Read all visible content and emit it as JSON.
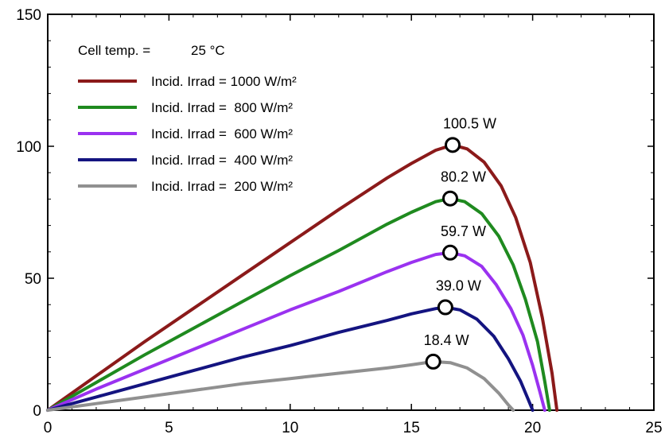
{
  "chart_data": {
    "type": "line",
    "title": "",
    "xlabel": "",
    "ylabel": "",
    "xlim": [
      0,
      25
    ],
    "ylim": [
      0,
      150
    ],
    "x_ticks": [
      0,
      5,
      10,
      15,
      20,
      25
    ],
    "y_ticks": [
      0,
      50,
      100,
      150
    ],
    "grid": false,
    "legend_placement": "top-left",
    "annotation": {
      "label": "Cell temp. =",
      "value": "25 °C"
    },
    "series": [
      {
        "name": "Incid. Irrad = 1000 W/m²",
        "color": "#8b1a1a",
        "x": [
          0,
          2,
          4,
          6,
          8,
          10,
          12,
          14,
          15,
          16.0,
          16.7,
          17.3,
          18.0,
          18.7,
          19.3,
          19.9,
          20.4,
          20.8,
          21.0
        ],
        "y": [
          0,
          13,
          26,
          38.5,
          51,
          63.5,
          76,
          88,
          93.5,
          98.5,
          100.5,
          99,
          94,
          85,
          73,
          56,
          35,
          14,
          0
        ],
        "mpp": {
          "x": 16.7,
          "y": 100.5,
          "label": "100.5 W"
        }
      },
      {
        "name": "Incid. Irrad =  800 W/m²",
        "color": "#1f8a1f",
        "x": [
          0,
          2,
          4,
          6,
          8,
          10,
          12,
          14,
          15,
          16.0,
          16.6,
          17.2,
          17.9,
          18.6,
          19.2,
          19.7,
          20.2,
          20.5,
          20.7
        ],
        "y": [
          0,
          10.5,
          21,
          31,
          41,
          51,
          60.5,
          70.5,
          75,
          79,
          80.2,
          79,
          74.5,
          66,
          55,
          42,
          26,
          11,
          0
        ],
        "mpp": {
          "x": 16.6,
          "y": 80.2,
          "label": "80.2 W"
        }
      },
      {
        "name": "Incid. Irrad =  600 W/m²",
        "color": "#9a32f0",
        "x": [
          0,
          2,
          4,
          6,
          8,
          10,
          12,
          14,
          15,
          16.0,
          16.6,
          17.2,
          17.9,
          18.5,
          19.1,
          19.6,
          20.0,
          20.3,
          20.5
        ],
        "y": [
          0,
          8,
          15.5,
          23,
          30.5,
          38,
          45,
          52.5,
          56,
          59,
          59.7,
          58.5,
          54.5,
          47.5,
          38.5,
          28.5,
          17,
          7,
          0
        ],
        "mpp": {
          "x": 16.6,
          "y": 59.7,
          "label": "59.7 W"
        }
      },
      {
        "name": "Incid. Irrad =  400 W/m²",
        "color": "#141480",
        "x": [
          0,
          2,
          4,
          6,
          8,
          10,
          12,
          14,
          15,
          16.0,
          16.4,
          17.0,
          17.7,
          18.4,
          19.0,
          19.5,
          19.8,
          20.0
        ],
        "y": [
          0,
          5,
          10,
          15,
          20,
          24.5,
          29.5,
          34,
          36.5,
          38.5,
          39.0,
          38,
          34.5,
          28,
          19.5,
          11,
          4.5,
          0
        ],
        "mpp": {
          "x": 16.4,
          "y": 39.0,
          "label": "39.0 W"
        }
      },
      {
        "name": "Incid. Irrad =  200 W/m²",
        "color": "#909090",
        "x": [
          0,
          2,
          4,
          6,
          8,
          10,
          12,
          14,
          15,
          15.9,
          16.6,
          17.3,
          18.0,
          18.6,
          19.0,
          19.2
        ],
        "y": [
          0,
          2.5,
          5,
          7.5,
          10,
          12,
          14,
          16,
          17.2,
          18.4,
          18,
          16,
          12,
          6.5,
          2,
          0
        ],
        "mpp": {
          "x": 15.9,
          "y": 18.4,
          "label": "18.4 W"
        }
      }
    ]
  }
}
